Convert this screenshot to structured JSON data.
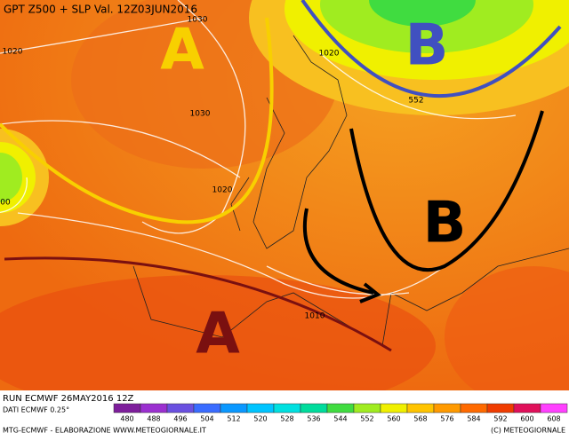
{
  "header": {
    "title": "GPT Z500 + SLP Val. 12Z03JUN2016"
  },
  "pressure_centers": [
    "A",
    "B",
    "B",
    "A"
  ],
  "contour_labels": [
    "1030",
    "1020",
    "1030",
    "1020",
    "1020",
    "552",
    "1010",
    "00"
  ],
  "footer": {
    "run": "RUN ECMWF 26MAY2016 12Z",
    "source": "DATI ECMWF 0.25°",
    "credit": "MTG-ECMWF - ELABORAZIONE WWW.METEOGIORNALE.IT",
    "copyright": "(C) METEOGIORNALE"
  },
  "color_scale": {
    "values": [
      480,
      488,
      496,
      504,
      512,
      520,
      528,
      536,
      544,
      552,
      560,
      568,
      576,
      584,
      592,
      600,
      608
    ],
    "colors": [
      "#7e1e9c",
      "#9b30d0",
      "#6a50e0",
      "#3a6cff",
      "#0a98ff",
      "#00c4ff",
      "#00e0e0",
      "#00dc9c",
      "#40dc40",
      "#a0ec20",
      "#f0f000",
      "#ffc400",
      "#ff9a00",
      "#ff6a00",
      "#f03c00",
      "#e0105a",
      "#ff40ff"
    ]
  }
}
